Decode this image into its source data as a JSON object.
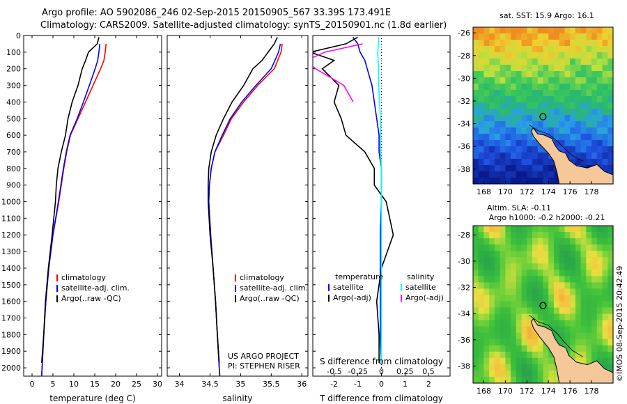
{
  "title": {
    "line1": "Argo profile: AO 5902086_246 02-Sep-2015 20150905_567 33.39S 173.491E",
    "line2": "Climatology: CARS2009. Satellite-adjusted climatology: synTS_20150901.nc (1.8d earlier)"
  },
  "colors": {
    "climatology": "#ff0000",
    "satellite": "#0000ff",
    "argo": "#000000",
    "salinity_satellite": "#00ffff",
    "salinity_argo": "#ff00ff",
    "land": "#f5c89a"
  },
  "depth_ticks": [
    0,
    100,
    200,
    300,
    400,
    500,
    600,
    700,
    800,
    900,
    1000,
    1100,
    1200,
    1300,
    1400,
    1500,
    1600,
    1700,
    1800,
    1900,
    2000
  ],
  "panels": {
    "temperature": {
      "xlabel": "temperature (deg C)",
      "xticks": [
        "0",
        "5",
        "10",
        "15",
        "20",
        "25",
        "30"
      ],
      "legend": [
        "climatology",
        "satellite-adj. clim.",
        "Argo(..raw -QC)"
      ]
    },
    "salinity": {
      "xlabel": "salinity",
      "xticks": [
        "34",
        "34.5",
        "35",
        "35.5",
        "36"
      ],
      "legend": [
        "climatology",
        "satellite-adj. clim.",
        "Argo(..raw -QC)"
      ],
      "credit1": "US ARGO PROJECT",
      "credit2": "PI: STEPHEN RISER"
    },
    "difference": {
      "xlabel": "T difference from climatology",
      "top_label": "S difference from climatology",
      "xticks_t": [
        "-2",
        "-1",
        "0",
        "1",
        "2"
      ],
      "xticks_s": [
        "-0.5",
        "-0.25",
        "0",
        "0.25",
        "0.5"
      ],
      "legend_t_head": "temperature",
      "legend_s_head": "salinity",
      "legend_t": [
        "satellite",
        "Argo(-adj)"
      ],
      "legend_s": [
        "satellite",
        "Argo(-adj)"
      ]
    }
  },
  "maps": {
    "sst_title": "sat. SST: 15.9  Argo: 16.1",
    "sla_title1": "Altim. SLA: -0.11",
    "sla_title2": "Argo h1000: -0.2  h2000: -0.21",
    "xticks": [
      "168",
      "170",
      "172",
      "174",
      "176",
      "178"
    ],
    "yticks": [
      "-28",
      "-30",
      "-32",
      "-34",
      "-36",
      "-38"
    ],
    "sst_yticks": [
      "-26",
      "-28",
      "-30",
      "-32",
      "-34",
      "-36",
      "-38"
    ],
    "sla_yticks": [
      "-28",
      "-30",
      "-32",
      "-34",
      "-36",
      "-38"
    ]
  },
  "side_label": "©IMOS 08-Sep-2015 20:42:49",
  "chart_data": {
    "type": "line",
    "temperature": {
      "ylim": [
        2050,
        0
      ],
      "xlim": [
        -2,
        31
      ],
      "series": [
        {
          "name": "climatology",
          "depth": [
            50,
            100,
            150,
            200,
            300,
            400,
            500,
            600,
            700,
            800,
            900,
            1000,
            1200,
            1400,
            1600,
            1800,
            2000,
            2050
          ],
          "values": [
            17.7,
            17.5,
            17.2,
            16.4,
            14.6,
            12.8,
            11.0,
            9.2,
            8.3,
            7.6,
            7.0,
            6.4,
            5.0,
            4.0,
            3.3,
            2.8,
            2.4,
            2.3
          ]
        },
        {
          "name": "satellite-adj. clim.",
          "depth": [
            50,
            100,
            150,
            200,
            300,
            400,
            500,
            600,
            700,
            800,
            900,
            1000,
            1200,
            1400,
            1600,
            1800,
            2000,
            2050
          ],
          "values": [
            16.2,
            16.0,
            15.7,
            15.1,
            13.7,
            12.3,
            10.8,
            9.1,
            8.2,
            7.5,
            6.9,
            6.3,
            5.0,
            4.0,
            3.3,
            2.8,
            2.4,
            2.3
          ]
        },
        {
          "name": "Argo(..raw -QC)",
          "depth": [
            10,
            50,
            100,
            150,
            200,
            300,
            400,
            500,
            600,
            700,
            800,
            900,
            1000,
            1200,
            1400,
            1600,
            1800,
            1970
          ],
          "values": [
            16.0,
            15.6,
            13.5,
            12.8,
            12.0,
            11.0,
            9.6,
            8.6,
            8.0,
            7.0,
            6.2,
            5.8,
            5.6,
            4.8,
            3.9,
            3.2,
            2.8,
            2.3
          ]
        }
      ]
    },
    "salinity": {
      "ylim": [
        2050,
        0
      ],
      "xlim": [
        33.8,
        36.1
      ],
      "series": [
        {
          "name": "climatology",
          "depth": [
            50,
            100,
            200,
            300,
            400,
            500,
            600,
            700,
            800,
            900,
            1000,
            1200,
            1400,
            1600,
            1800,
            2000,
            2050
          ],
          "values": [
            35.68,
            35.66,
            35.55,
            35.28,
            35.05,
            34.85,
            34.72,
            34.58,
            34.52,
            34.49,
            34.48,
            34.51,
            34.55,
            34.59,
            34.62,
            34.65,
            34.66
          ]
        },
        {
          "name": "satellite-adj. clim.",
          "depth": [
            50,
            100,
            200,
            300,
            400,
            500,
            600,
            700,
            800,
            900,
            1000,
            1200,
            1400,
            1600,
            1800,
            2000,
            2050
          ],
          "values": [
            35.65,
            35.62,
            35.5,
            35.25,
            35.02,
            34.83,
            34.7,
            34.58,
            34.52,
            34.49,
            34.48,
            34.51,
            34.55,
            34.59,
            34.62,
            34.65,
            34.66
          ]
        },
        {
          "name": "Argo(..raw -QC)",
          "depth": [
            10,
            50,
            100,
            150,
            200,
            300,
            400,
            500,
            600,
            700,
            800,
            900,
            1000,
            1200,
            1400,
            1600,
            1800,
            1970
          ],
          "values": [
            35.6,
            35.55,
            35.45,
            35.35,
            35.2,
            35.05,
            34.86,
            34.72,
            34.6,
            34.52,
            34.48,
            34.47,
            34.47,
            34.5,
            34.55,
            34.59,
            34.62,
            34.65
          ]
        }
      ]
    },
    "difference": {
      "ylim": [
        2050,
        0
      ],
      "t_xlim": [
        -2.9,
        2.9
      ],
      "s_xlim": [
        -0.73,
        0.73
      ],
      "series": [
        {
          "name": "temperature satellite",
          "depth": [
            10,
            50,
            100,
            150,
            200,
            300,
            400,
            500,
            600,
            700,
            800,
            900,
            1000,
            1200,
            1400,
            1600,
            1800,
            1970
          ],
          "values": [
            -1.2,
            -1.0,
            -0.9,
            -0.7,
            -0.6,
            -0.4,
            -0.3,
            -0.2,
            -0.1,
            -0.1,
            0.0,
            0.0,
            0.0,
            -0.05,
            -0.05,
            -0.05,
            -0.05,
            0.0
          ]
        },
        {
          "name": "temperature Argo(-adj)",
          "depth": [
            10,
            50,
            100,
            150,
            200,
            300,
            400,
            500,
            600,
            700,
            800,
            900,
            1000,
            1200,
            1400,
            1600,
            1800,
            1970
          ],
          "values": [
            -1.0,
            -1.5,
            -3.0,
            -2.0,
            -2.5,
            -1.8,
            -2.0,
            -1.7,
            -1.5,
            -0.7,
            -0.3,
            -0.3,
            0.2,
            0.5,
            0.0,
            -0.2,
            -0.1,
            -0.1
          ]
        },
        {
          "name": "salinity satellite",
          "depth": [
            10,
            50,
            100,
            200,
            300,
            400,
            500,
            600,
            700,
            800,
            1000,
            1200,
            1400,
            1600,
            1800,
            1970
          ],
          "values": [
            -0.03,
            -0.03,
            -0.04,
            -0.03,
            -0.03,
            -0.02,
            -0.01,
            -0.01,
            -0.01,
            0.0,
            0.0,
            0.0,
            0.0,
            0.0,
            0.0,
            0.0
          ]
        },
        {
          "name": "salinity Argo(-adj)",
          "depth": [
            50,
            100,
            150,
            200,
            250,
            300,
            400
          ],
          "values": [
            -0.2,
            -0.6,
            -0.8,
            -0.7,
            -0.55,
            -0.4,
            -0.3
          ]
        }
      ]
    },
    "maps": {
      "lon": [
        167,
        180
      ],
      "lat": [
        -25.5,
        -39.3
      ],
      "sla_lat": [
        -27.3,
        -39.3
      ],
      "float_position": {
        "lon": 173.491,
        "lat": -33.39
      }
    }
  }
}
